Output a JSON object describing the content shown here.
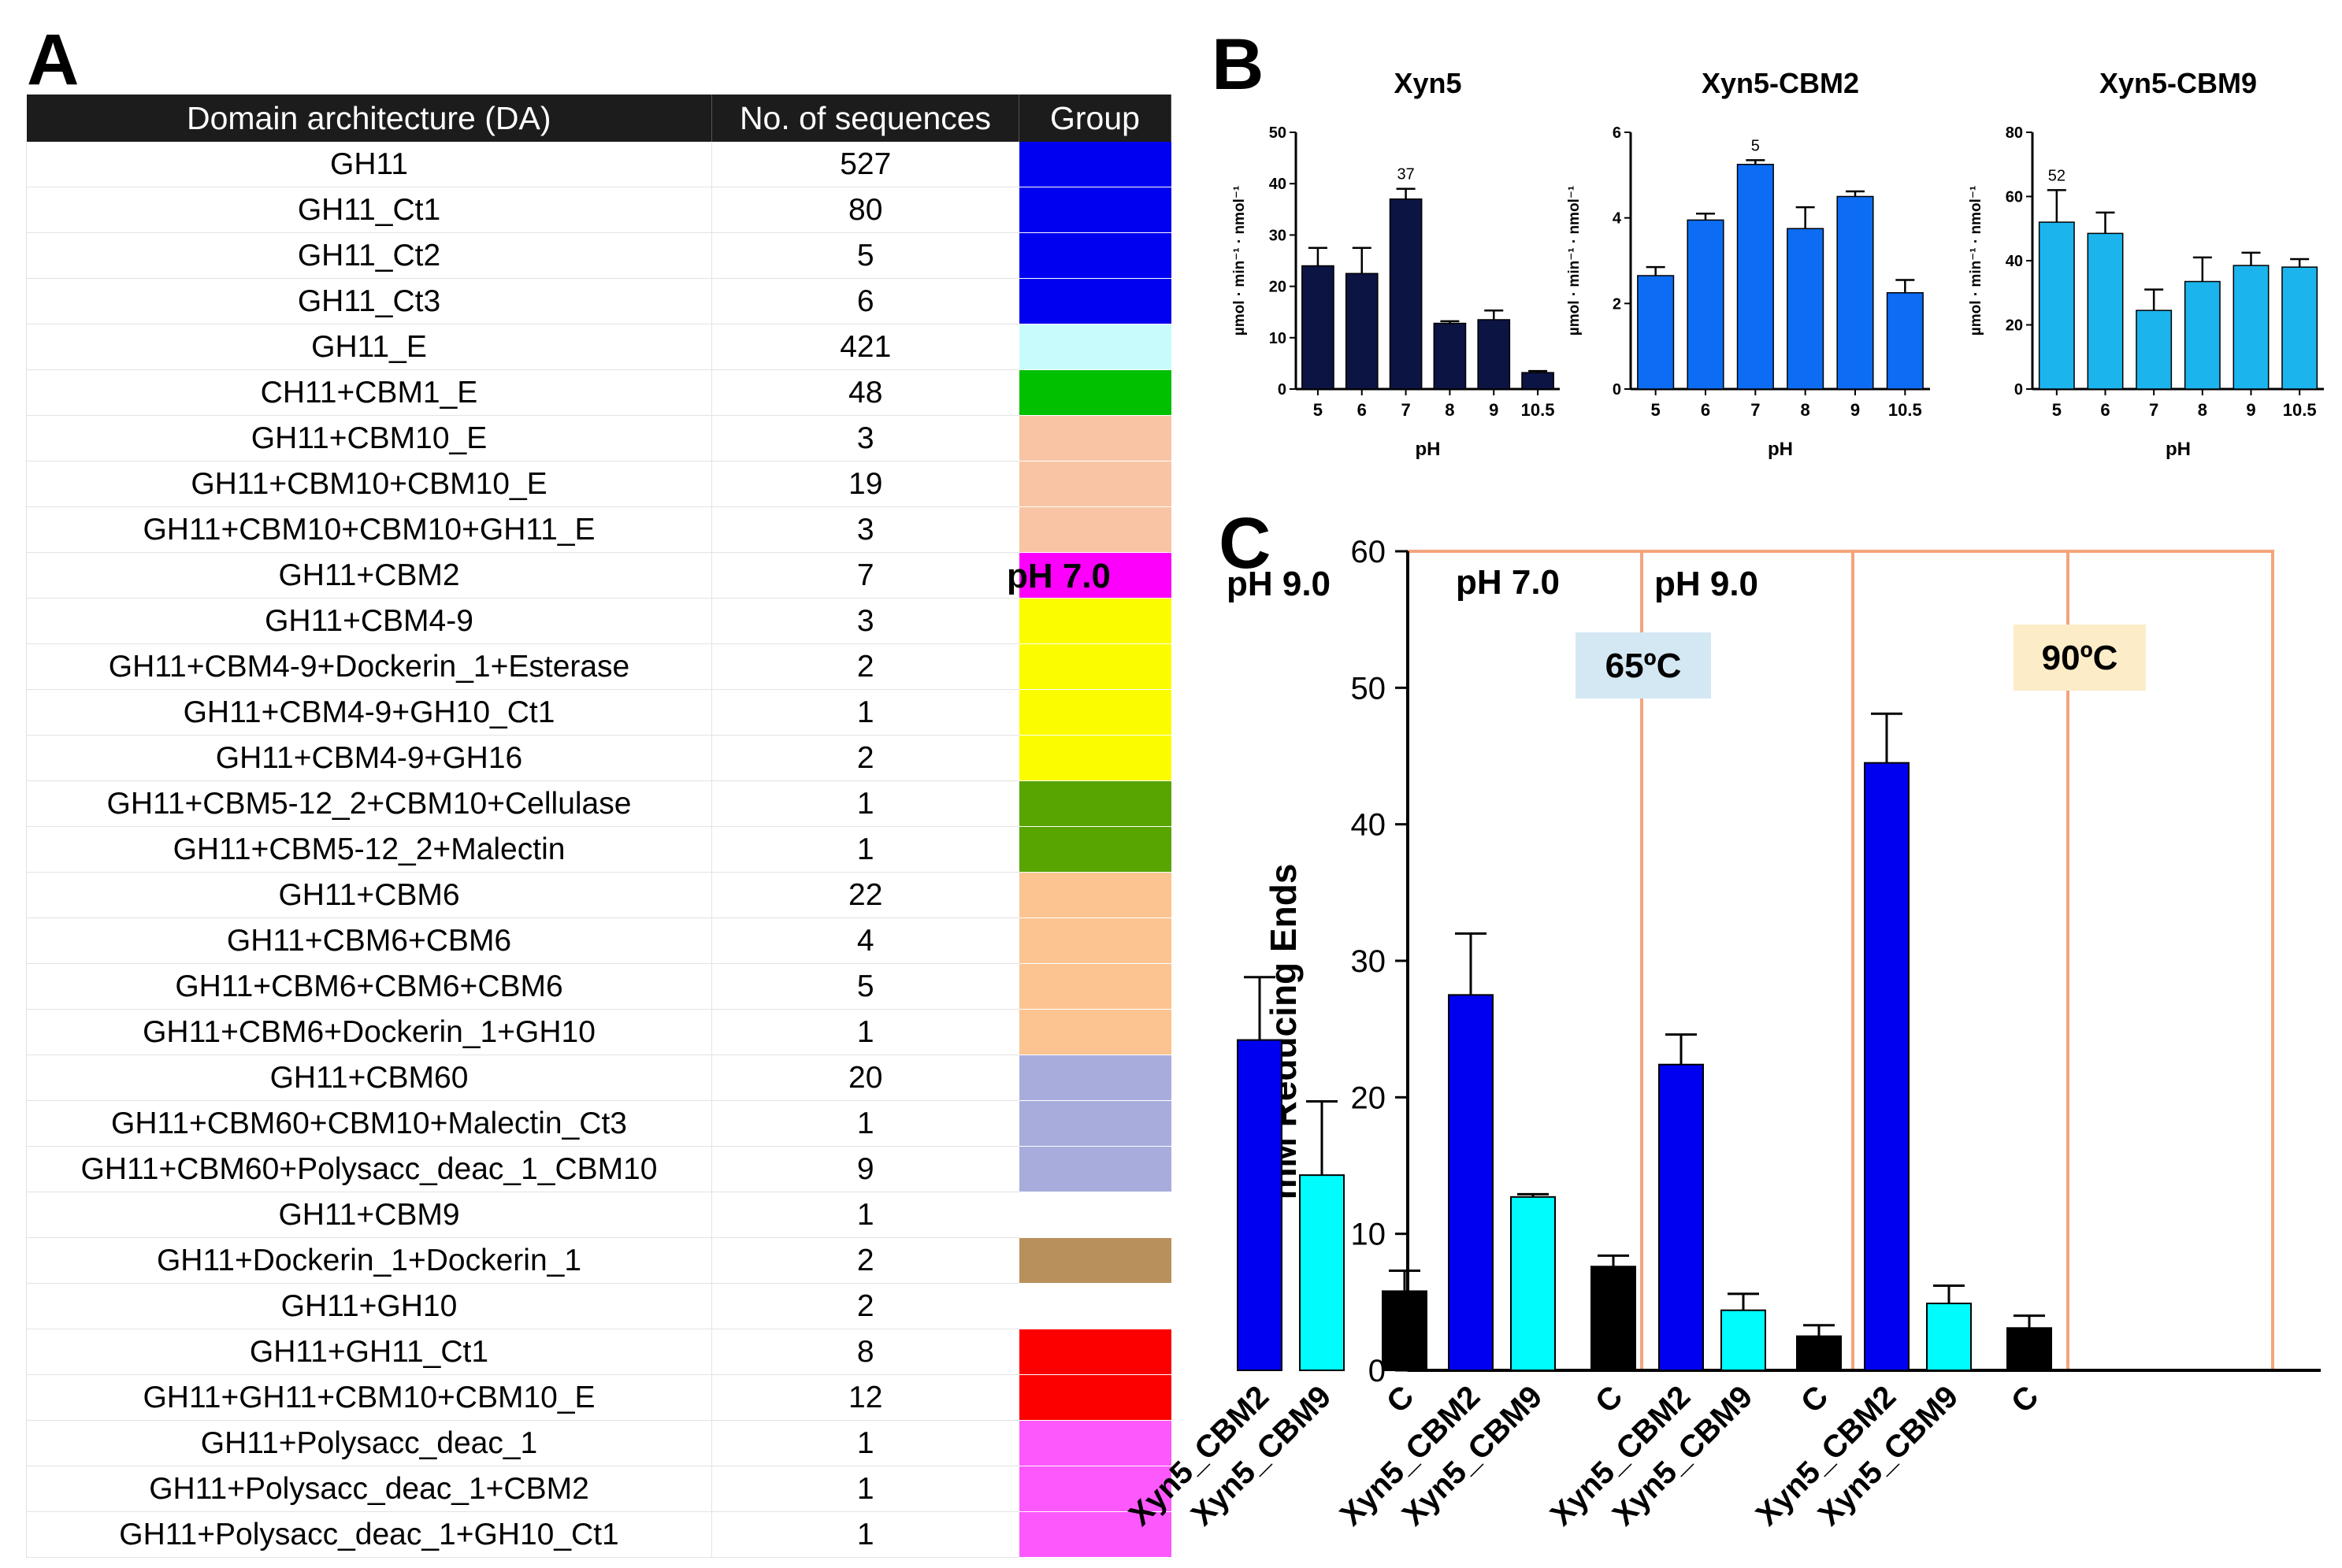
{
  "panel_labels": {
    "a": "A",
    "b": "B",
    "c": "C"
  },
  "table": {
    "headers": [
      "Domain architecture (DA)",
      "No. of sequences",
      "Group"
    ],
    "rows": [
      {
        "da": "GH11",
        "count": "527",
        "color": "#0000f0"
      },
      {
        "da": "GH11_Ct1",
        "count": "80",
        "color": "#0000f0"
      },
      {
        "da": "GH11_Ct2",
        "count": "5",
        "color": "#0000f0"
      },
      {
        "da": "GH11_Ct3",
        "count": "6",
        "color": "#0000f0"
      },
      {
        "da": "GH11_E",
        "count": "421",
        "color": "#c8fcfc"
      },
      {
        "da": "CH11+CBM1_E",
        "count": "48",
        "color": "#00c000"
      },
      {
        "da": "GH11+CBM10_E",
        "count": "3",
        "color": "#f8c4a4"
      },
      {
        "da": "GH11+CBM10+CBM10_E",
        "count": "19",
        "color": "#f8c4a4"
      },
      {
        "da": "GH11+CBM10+CBM10+GH11_E",
        "count": "3",
        "color": "#f8c4a4"
      },
      {
        "da": "GH11+CBM2",
        "count": "7",
        "color": "#fc00fc"
      },
      {
        "da": "GH11+CBM4-9",
        "count": "3",
        "color": "#fcfc00"
      },
      {
        "da": "GH11+CBM4-9+Dockerin_1+Esterase",
        "count": "2",
        "color": "#fcfc00"
      },
      {
        "da": "GH11+CBM4-9+GH10_Ct1",
        "count": "1",
        "color": "#fcfc00"
      },
      {
        "da": "GH11+CBM4-9+GH16",
        "count": "2",
        "color": "#fcfc00"
      },
      {
        "da": "GH11+CBM5-12_2+CBM10+Cellulase",
        "count": "1",
        "color": "#58a400"
      },
      {
        "da": "GH11+CBM5-12_2+Malectin",
        "count": "1",
        "color": "#58a400"
      },
      {
        "da": "GH11+CBM6",
        "count": "22",
        "color": "#fcc490"
      },
      {
        "da": "GH11+CBM6+CBM6",
        "count": "4",
        "color": "#fcc490"
      },
      {
        "da": "GH11+CBM6+CBM6+CBM6",
        "count": "5",
        "color": "#fcc490"
      },
      {
        "da": "GH11+CBM6+Dockerin_1+GH10",
        "count": "1",
        "color": "#fcc490"
      },
      {
        "da": "GH11+CBM60",
        "count": "20",
        "color": "#a8acdc"
      },
      {
        "da": "GH11+CBM60+CBM10+Malectin_Ct3",
        "count": "1",
        "color": "#a8acdc"
      },
      {
        "da": "GH11+CBM60+Polysacc_deac_1_CBM10",
        "count": "9",
        "color": "#a8acdc"
      },
      {
        "da": "GH11+CBM9",
        "count": "1",
        "color": "#ffffff"
      },
      {
        "da": "GH11+Dockerin_1+Dockerin_1",
        "count": "2",
        "color": "#b8905c"
      },
      {
        "da": "GH11+GH10",
        "count": "2",
        "color": "#ffffff"
      },
      {
        "da": "GH11+GH11_Ct1",
        "count": "8",
        "color": "#fc0000"
      },
      {
        "da": "GH11+GH11+CBM10+CBM10_E",
        "count": "12",
        "color": "#fc0000"
      },
      {
        "da": "GH11+Polysacc_deac_1",
        "count": "1",
        "color": "#fc58fc"
      },
      {
        "da": "GH11+Polysacc_deac_1+CBM2",
        "count": "1",
        "color": "#fc58fc"
      },
      {
        "da": "GH11+Polysacc_deac_1+GH10_Ct1",
        "count": "1",
        "color": "#fc58fc"
      }
    ]
  },
  "chart_data": [
    {
      "type": "bar",
      "title": "Xyn5",
      "xlabel": "pH",
      "ylabel": "µmol · min⁻¹ · nmol⁻¹",
      "categories": [
        "5",
        "6",
        "7",
        "8",
        "9",
        "10.5"
      ],
      "values": [
        24,
        22.5,
        37,
        12.8,
        13.5,
        3.2
      ],
      "errors": [
        3.5,
        5,
        2,
        0.4,
        1.8,
        0.3
      ],
      "ylim": [
        0,
        50
      ],
      "yticks": [
        "0",
        "10",
        "20",
        "30",
        "40",
        "50"
      ],
      "annotation": {
        "text": "37",
        "category": "7"
      },
      "color": "#0c1444"
    },
    {
      "type": "bar",
      "title": "Xyn5-CBM2",
      "xlabel": "pH",
      "ylabel": "µmol · min⁻¹ · nmol⁻¹",
      "categories": [
        "5",
        "6",
        "7",
        "8",
        "9",
        "10.5"
      ],
      "values": [
        2.65,
        3.95,
        5.25,
        3.75,
        4.5,
        2.25
      ],
      "errors": [
        0.2,
        0.15,
        0.1,
        0.5,
        0.12,
        0.3
      ],
      "ylim": [
        0,
        6
      ],
      "yticks": [
        "0",
        "2",
        "4",
        "6"
      ],
      "annotation": {
        "text": "5",
        "category": "7"
      },
      "color": "#0c6cf4"
    },
    {
      "type": "bar",
      "title": "Xyn5-CBM9",
      "xlabel": "pH",
      "ylabel": "µmol · min⁻¹ · nmol⁻¹",
      "categories": [
        "5",
        "6",
        "7",
        "8",
        "9",
        "10.5"
      ],
      "values": [
        52,
        48.5,
        24.5,
        33.5,
        38.5,
        38
      ],
      "errors": [
        10,
        6.5,
        6.5,
        7.5,
        4,
        2.5
      ],
      "ylim": [
        0,
        80
      ],
      "yticks": [
        "0",
        "20",
        "40",
        "60",
        "80"
      ],
      "annotation": {
        "text": "52",
        "category": "5"
      },
      "color": "#1cb4ec"
    },
    {
      "type": "bar",
      "ylabel": "mM Reducing Ends",
      "ylim": [
        0,
        60
      ],
      "yticks": [
        "0",
        "10",
        "20",
        "30",
        "40",
        "50",
        "60"
      ],
      "categories": [
        "Xyn5_CBM2",
        "Xyn5_CBM9",
        "C",
        "Xyn5_CBM2",
        "Xyn5_CBM9",
        "C",
        "Xyn5_CBM2",
        "Xyn5_CBM9",
        "C",
        "Xyn5_CBM2",
        "Xyn5_CBM9",
        "C"
      ],
      "values": [
        24.2,
        14.3,
        5.8,
        27.5,
        12.7,
        7.6,
        22.4,
        4.4,
        2.5,
        44.5,
        4.9,
        3.1
      ],
      "errors": [
        4.6,
        5.4,
        1.5,
        4.5,
        0.2,
        0.8,
        2.2,
        1.2,
        0.8,
        3.6,
        1.3,
        0.9
      ],
      "colors": [
        "#0000f0",
        "#00fcfc",
        "#000000",
        "#0000f0",
        "#00fcfc",
        "#000000",
        "#0000f0",
        "#00fcfc",
        "#000000",
        "#0000f0",
        "#00fcfc",
        "#000000"
      ],
      "groups": [
        "pH 7.0",
        "pH 9.0",
        "pH 7.0",
        "pH 9.0"
      ],
      "temperatures": [
        {
          "label": "65ºC",
          "bg": "#d4e8f4"
        },
        {
          "label": "90ºC",
          "bg": "#fcecc8"
        }
      ],
      "group_border_color": "#f4a47c"
    }
  ]
}
